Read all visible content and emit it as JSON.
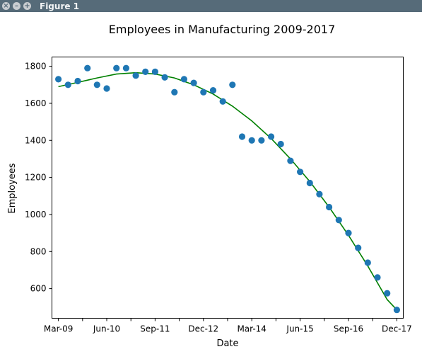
{
  "window": {
    "title": "Figure 1"
  },
  "chart_data": {
    "type": "scatter",
    "title": "Employees in Manufacturing 2009-2017",
    "xlabel": "Date",
    "ylabel": "Employees",
    "xlim": [
      "2009-01",
      "2018-02"
    ],
    "ylim": [
      440,
      1850
    ],
    "x_ticks": [
      "Mar-09",
      "Jun-10",
      "Sep-11",
      "Dec-12",
      "Mar-14",
      "Jun-15",
      "Sep-16",
      "Dec-17"
    ],
    "y_ticks": [
      600,
      800,
      1000,
      1200,
      1400,
      1600,
      1800
    ],
    "grid": false,
    "series": [
      {
        "marker": "circle",
        "color": "#1f77b4",
        "points": [
          {
            "x": "2009-03",
            "y": 1730
          },
          {
            "x": "2009-06",
            "y": 1700
          },
          {
            "x": "2009-09",
            "y": 1720
          },
          {
            "x": "2009-12",
            "y": 1790
          },
          {
            "x": "2010-03",
            "y": 1700
          },
          {
            "x": "2010-06",
            "y": 1680
          },
          {
            "x": "2010-09",
            "y": 1790
          },
          {
            "x": "2010-12",
            "y": 1790
          },
          {
            "x": "2011-03",
            "y": 1750
          },
          {
            "x": "2011-06",
            "y": 1770
          },
          {
            "x": "2011-09",
            "y": 1770
          },
          {
            "x": "2011-12",
            "y": 1740
          },
          {
            "x": "2012-03",
            "y": 1660
          },
          {
            "x": "2012-06",
            "y": 1730
          },
          {
            "x": "2012-09",
            "y": 1710
          },
          {
            "x": "2012-12",
            "y": 1660
          },
          {
            "x": "2013-03",
            "y": 1670
          },
          {
            "x": "2013-06",
            "y": 1610
          },
          {
            "x": "2013-09",
            "y": 1700
          },
          {
            "x": "2013-12",
            "y": 1420
          },
          {
            "x": "2014-03",
            "y": 1400
          },
          {
            "x": "2014-06",
            "y": 1400
          },
          {
            "x": "2014-09",
            "y": 1420
          },
          {
            "x": "2014-12",
            "y": 1380
          },
          {
            "x": "2015-03",
            "y": 1290
          },
          {
            "x": "2015-06",
            "y": 1230
          },
          {
            "x": "2015-09",
            "y": 1170
          },
          {
            "x": "2015-12",
            "y": 1110
          },
          {
            "x": "2016-03",
            "y": 1040
          },
          {
            "x": "2016-06",
            "y": 970
          },
          {
            "x": "2016-09",
            "y": 900
          },
          {
            "x": "2016-12",
            "y": 820
          },
          {
            "x": "2017-03",
            "y": 740
          },
          {
            "x": "2017-06",
            "y": 660
          },
          {
            "x": "2017-09",
            "y": 575
          },
          {
            "x": "2017-12",
            "y": 485
          }
        ]
      },
      {
        "type": "line",
        "color": "#008000",
        "points": [
          {
            "x": "2009-03",
            "y": 1690
          },
          {
            "x": "2009-09",
            "y": 1713
          },
          {
            "x": "2010-03",
            "y": 1737
          },
          {
            "x": "2010-09",
            "y": 1758
          },
          {
            "x": "2011-03",
            "y": 1765
          },
          {
            "x": "2011-09",
            "y": 1758
          },
          {
            "x": "2012-03",
            "y": 1737
          },
          {
            "x": "2012-09",
            "y": 1700
          },
          {
            "x": "2013-03",
            "y": 1650
          },
          {
            "x": "2013-09",
            "y": 1585
          },
          {
            "x": "2014-03",
            "y": 1505
          },
          {
            "x": "2014-09",
            "y": 1410
          },
          {
            "x": "2015-03",
            "y": 1300
          },
          {
            "x": "2015-09",
            "y": 1178
          },
          {
            "x": "2016-03",
            "y": 1040
          },
          {
            "x": "2016-09",
            "y": 888
          },
          {
            "x": "2017-03",
            "y": 722
          },
          {
            "x": "2017-09",
            "y": 541
          },
          {
            "x": "2017-12",
            "y": 485
          }
        ]
      }
    ]
  }
}
